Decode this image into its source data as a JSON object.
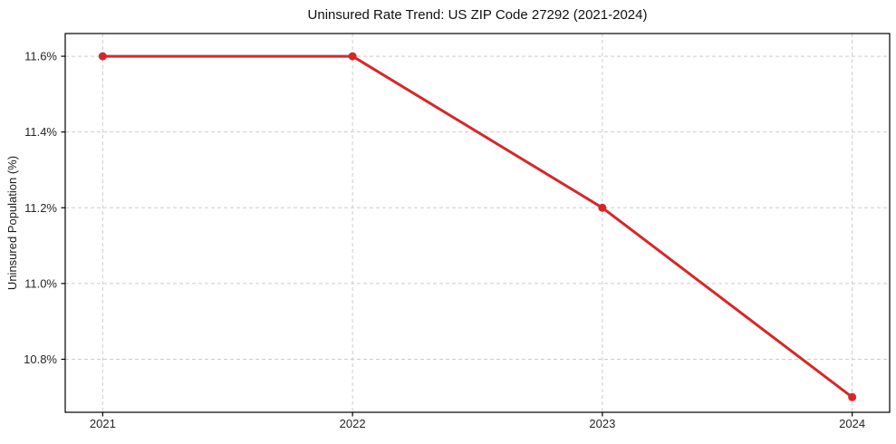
{
  "chart_data": {
    "type": "line",
    "title": "Uninsured Rate Trend: US ZIP Code 27292 (2021-2024)",
    "xlabel": "",
    "ylabel": "Uninsured Population (%)",
    "x": [
      2021,
      2022,
      2023,
      2024
    ],
    "series": [
      {
        "name": "Uninsured Population (%)",
        "values": [
          11.6,
          11.6,
          11.2,
          10.7
        ],
        "color": "#d62728",
        "marker": "circle",
        "line_width": 3,
        "marker_radius": 4.5
      }
    ],
    "xlim": [
      2020.85,
      2024.15
    ],
    "ylim": [
      10.66,
      11.66
    ],
    "x_ticks": {
      "values": [
        2021,
        2022,
        2023,
        2024
      ],
      "labels": [
        "2021",
        "2022",
        "2023",
        "2024"
      ]
    },
    "y_ticks": {
      "values": [
        10.8,
        11.0,
        11.2,
        11.4,
        11.6
      ],
      "labels": [
        "10.8%",
        "11.0%",
        "11.2%",
        "11.4%",
        "11.6%"
      ]
    },
    "grid": {
      "visible": true,
      "style": "dashed",
      "color": "#cccccc"
    },
    "legend": {
      "visible": false,
      "position": "none"
    },
    "colors": {
      "line": "#d62728",
      "spine": "#000000",
      "tick": "#000000",
      "text": "#1a1a1a",
      "grid": "#cccccc",
      "background": "#ffffff"
    }
  }
}
